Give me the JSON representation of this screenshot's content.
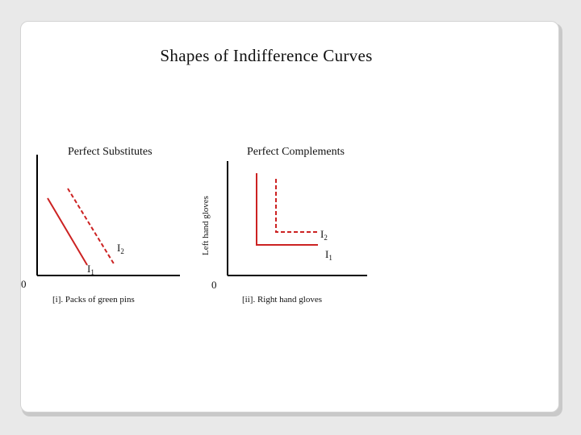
{
  "slide": {
    "title": "Shapes of Indifference Curves"
  },
  "left_panel": {
    "heading": "Perfect Substitutes",
    "x_caption": "[i]. Packs of green pins",
    "origin": "0",
    "curves": [
      {
        "base": "I",
        "sub": "1"
      },
      {
        "base": "I",
        "sub": "2"
      }
    ]
  },
  "right_panel": {
    "heading": "Perfect Complements",
    "x_caption": "[ii]. Right hand gloves",
    "y_caption": "Left hand gloves",
    "origin": "0",
    "curves": [
      {
        "base": "I",
        "sub": "2"
      },
      {
        "base": "I",
        "sub": "1"
      }
    ]
  },
  "colors": {
    "curve": "#cc2222",
    "axis": "#000000"
  }
}
